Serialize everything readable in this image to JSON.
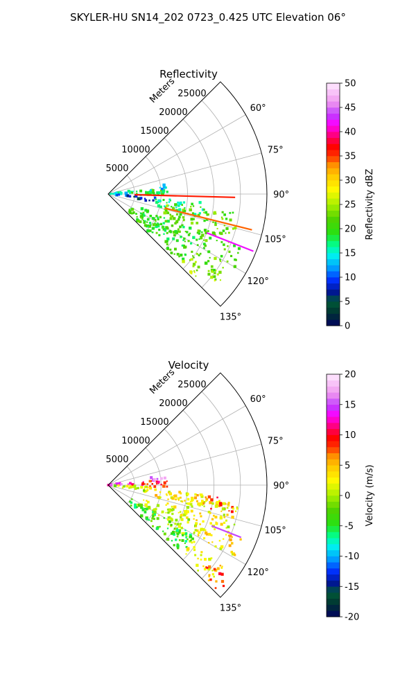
{
  "figure": {
    "title": "SKYLER-HU  SN14_202  0723_0.425 UTC Elevation 06°"
  },
  "chart_data": [
    {
      "type": "heatmap",
      "subtype": "polar-sector",
      "title": "Reflectivity",
      "radial_axis": {
        "label": "Meters",
        "ticks": [
          5000,
          10000,
          15000,
          20000,
          25000
        ],
        "range": [
          0,
          30000
        ]
      },
      "azimuth_axis": {
        "unit": "degrees",
        "ticks": [
          60,
          75,
          90,
          105,
          120,
          135
        ],
        "tick_labels": [
          "60°",
          "75°",
          "90°",
          "105°",
          "120°",
          "135°"
        ],
        "range": [
          45,
          135
        ]
      },
      "grid": true,
      "colorbar": {
        "label": "Reflectivity dBZ",
        "range": [
          0,
          50
        ],
        "ticks": [
          0,
          5,
          10,
          15,
          20,
          25,
          30,
          35,
          40,
          45,
          50
        ]
      },
      "echo_regions": [
        {
          "az": [
            80,
            90
          ],
          "r": [
            0,
            5000
          ],
          "value": 15
        },
        {
          "az": [
            84,
            92
          ],
          "r": [
            4500,
            11500
          ],
          "value": 20
        },
        {
          "az": [
            87,
            93
          ],
          "r": [
            6000,
            11000
          ],
          "value": 18
        },
        {
          "az": [
            80,
            85
          ],
          "r": [
            8000,
            11000
          ],
          "value": 14
        },
        {
          "az": [
            92,
            98
          ],
          "r": [
            1000,
            4000
          ],
          "value": 10
        },
        {
          "az": [
            94,
            100
          ],
          "r": [
            3500,
            9000
          ],
          "value": 8
        },
        {
          "az": [
            95,
            104
          ],
          "r": [
            9000,
            19000
          ],
          "value": 17
        },
        {
          "az": [
            98,
            112
          ],
          "r": [
            11000,
            25000
          ],
          "value": 22
        },
        {
          "az": [
            112,
            120
          ],
          "r": [
            18000,
            28000
          ],
          "value": 21
        },
        {
          "az": [
            112,
            125
          ],
          "r": [
            6500,
            20000
          ],
          "value": 20
        },
        {
          "az": [
            120,
            133
          ],
          "r": [
            5000,
            19000
          ],
          "value": 20
        },
        {
          "az": [
            125,
            134
          ],
          "r": [
            19000,
            27000
          ],
          "value": 24
        },
        {
          "az": [
            120,
            126
          ],
          "r": [
            20000,
            26000
          ],
          "value": 22
        }
      ],
      "spike_lines": [
        {
          "az": 91.5,
          "r": [
            5000,
            24000
          ],
          "value": 36
        },
        {
          "az": 104,
          "r": [
            11000,
            28000
          ],
          "value": 34
        },
        {
          "az": 111.5,
          "r": [
            20000,
            29500
          ],
          "value": 42
        }
      ]
    },
    {
      "type": "heatmap",
      "subtype": "polar-sector",
      "title": "Velocity",
      "radial_axis": {
        "label": "Meters",
        "ticks": [
          5000,
          10000,
          15000,
          20000,
          25000
        ],
        "range": [
          0,
          30000
        ]
      },
      "azimuth_axis": {
        "unit": "degrees",
        "ticks": [
          60,
          75,
          90,
          105,
          120,
          135
        ],
        "tick_labels": [
          "60°",
          "75°",
          "90°",
          "105°",
          "120°",
          "135°"
        ],
        "range": [
          45,
          135
        ]
      },
      "grid": true,
      "colorbar": {
        "label": "Velocity (m/s)",
        "range": [
          -20,
          20
        ],
        "ticks": [
          -20,
          -15,
          -10,
          -5,
          0,
          5,
          10,
          15,
          20
        ]
      },
      "echo_regions": [
        {
          "az": [
            80,
            88
          ],
          "r": [
            0,
            4500
          ],
          "value": 14
        },
        {
          "az": [
            84,
            92
          ],
          "r": [
            4500,
            11500
          ],
          "value": 10
        },
        {
          "az": [
            80,
            85
          ],
          "r": [
            8000,
            11000
          ],
          "value": 15
        },
        {
          "az": [
            92,
            100
          ],
          "r": [
            1000,
            9000
          ],
          "value": 1
        },
        {
          "az": [
            95,
            104
          ],
          "r": [
            9000,
            19000
          ],
          "value": 3
        },
        {
          "az": [
            96,
            104
          ],
          "r": [
            17000,
            24000
          ],
          "value": 8
        },
        {
          "az": [
            98,
            112
          ],
          "r": [
            11000,
            25000
          ],
          "value": 2
        },
        {
          "az": [
            112,
            120
          ],
          "r": [
            18000,
            28000
          ],
          "value": 3
        },
        {
          "az": [
            112,
            125
          ],
          "r": [
            6500,
            20000
          ],
          "value": 1
        },
        {
          "az": [
            120,
            133
          ],
          "r": [
            5000,
            19000
          ],
          "value": -4
        },
        {
          "az": [
            125,
            134
          ],
          "r": [
            19000,
            27000
          ],
          "value": 3
        },
        {
          "az": [
            128,
            134
          ],
          "r": [
            24000,
            29000
          ],
          "value": 8
        }
      ],
      "spike_lines": [
        {
          "az": 111.5,
          "r": [
            21000,
            27000
          ],
          "value": 15
        }
      ]
    }
  ]
}
